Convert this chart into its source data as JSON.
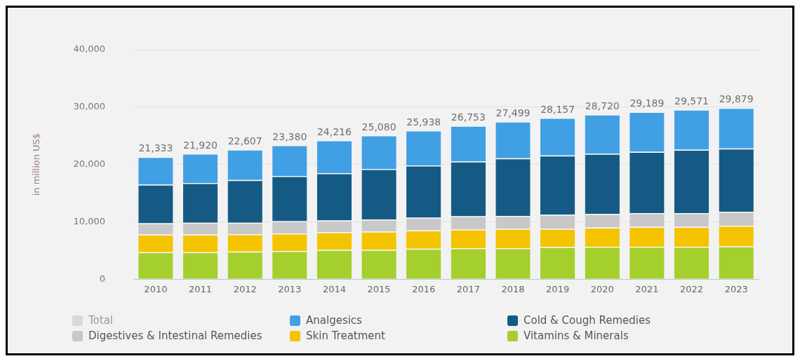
{
  "chart_data": {
    "type": "bar",
    "stacked": true,
    "ylabel": "in million US$",
    "categories": [
      "2010",
      "2011",
      "2012",
      "2013",
      "2014",
      "2015",
      "2016",
      "2017",
      "2018",
      "2019",
      "2020",
      "2021",
      "2022",
      "2023"
    ],
    "series": [
      {
        "name": "Vitamins & Minerals",
        "color": "#a5cf2c",
        "values": [
          4710,
          4710,
          4830,
          4910,
          5120,
          5120,
          5320,
          5400,
          5400,
          5610,
          5640,
          5640,
          5640,
          5730
        ]
      },
      {
        "name": "Skin Treatment",
        "color": "#f5c400",
        "values": [
          3070,
          3070,
          3020,
          3070,
          3060,
          3180,
          3200,
          3270,
          3400,
          3190,
          3370,
          3490,
          3490,
          3600
        ]
      },
      {
        "name": "Digestives & Intestinal Remedies",
        "color": "#c8c8c8",
        "values": [
          1960,
          2040,
          2000,
          2130,
          2050,
          2130,
          2200,
          2300,
          2240,
          2450,
          2360,
          2400,
          2400,
          2410
        ]
      },
      {
        "name": "Cold & Cough Remedies",
        "color": "#155a85",
        "values": [
          6750,
          6950,
          7450,
          7890,
          8260,
          8790,
          9120,
          9570,
          10030,
          10310,
          10520,
          10680,
          11050,
          11050
        ]
      },
      {
        "name": "Analgesics",
        "color": "#41a0e4",
        "values": [
          4843,
          5150,
          5307,
          5380,
          5726,
          5860,
          6098,
          6213,
          6429,
          6597,
          6830,
          6979,
          6991,
          7089
        ]
      },
      {
        "name": "Total",
        "color": "#d9d9d9",
        "values": [
          null,
          null,
          null,
          null,
          null,
          null,
          null,
          null,
          null,
          null,
          null,
          null,
          null,
          null
        ]
      }
    ],
    "totals": [
      "21,333",
      "21,920",
      "22,607",
      "23,380",
      "24,216",
      "25,080",
      "25,938",
      "26,753",
      "27,499",
      "28,157",
      "28,720",
      "29,189",
      "29,571",
      "29,879"
    ],
    "ylim": [
      0,
      40000
    ],
    "yticks": [
      0,
      {
        "value": 10000,
        "label": "10,000"
      },
      {
        "value": 20000,
        "label": "20,000"
      },
      {
        "value": 30000,
        "label": "30,000"
      },
      {
        "value": 40000,
        "label": "40,000"
      }
    ],
    "grid": "y",
    "legend": "bottom"
  }
}
